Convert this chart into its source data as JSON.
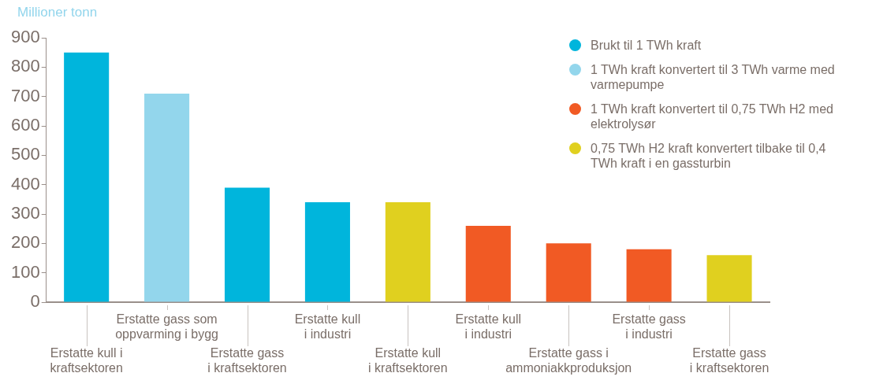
{
  "chart_data": {
    "type": "bar",
    "ylabel": "Millioner tonn",
    "categories": [
      "Erstatte kull i\nkraftsektoren",
      "Erstatte gass som\noppvarming i bygg",
      "Erstatte gass\ni kraftsektoren",
      "Erstatte kull\ni industri",
      "Erstatte kull\ni kraftsektoren",
      "Erstatte kull\ni industri",
      "Erstatte gass i\nammoniakkproduksjon",
      "Erstatte gass\ni industri",
      "Erstatte gass\ni kraftsektoren"
    ],
    "series": [
      {
        "name": "Brukt til 1 TWh kraft",
        "color": "#00b5dc",
        "values": [
          850,
          null,
          390,
          340,
          null,
          null,
          null,
          null,
          null
        ]
      },
      {
        "name": "1 TWh kraft konvertert til 3 TWh varme med varmepumpe",
        "color": "#93d6ec",
        "values": [
          null,
          710,
          null,
          null,
          null,
          null,
          null,
          null,
          null
        ]
      },
      {
        "name": "1 TWh kraft konvertert til 0,75 TWh H2 med elektrolysør",
        "color": "#f15a24",
        "values": [
          null,
          null,
          null,
          null,
          null,
          260,
          200,
          180,
          null
        ]
      },
      {
        "name": "0,75 TWh H2 kraft konvertert tilbake til 0,4 TWh kraft i en gassturbin",
        "color": "#e0d01f",
        "values": [
          null,
          null,
          null,
          null,
          340,
          null,
          null,
          null,
          160
        ]
      }
    ],
    "ylim": [
      0,
      900
    ],
    "yticks": [
      0,
      100,
      200,
      300,
      400,
      500,
      600,
      700,
      800,
      900
    ],
    "legend": "top right"
  }
}
